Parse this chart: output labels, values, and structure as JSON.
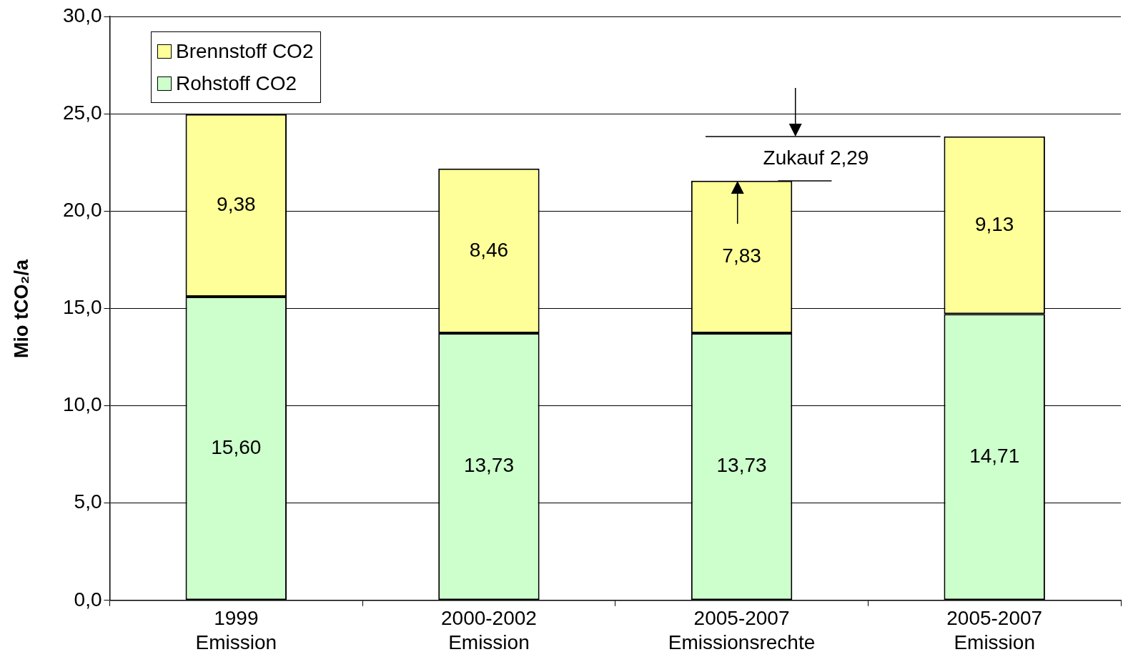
{
  "chart_data": {
    "type": "bar",
    "stacked": true,
    "ylabel": "Mio tCO₂/a",
    "categories": [
      "1999\nEmission",
      "2000-2002\nEmission",
      "2005-2007\nEmissionsrechte",
      "2005-2007\nEmission"
    ],
    "series": [
      {
        "name": "Rohstoff CO2",
        "color": "#ccffcc",
        "values": [
          15.6,
          13.73,
          13.73,
          14.71
        ],
        "value_labels": [
          "15,60",
          "13,73",
          "13,73",
          "14,71"
        ]
      },
      {
        "name": "Brennstoff CO2",
        "color": "#ffff99",
        "values": [
          9.38,
          8.46,
          7.83,
          9.13
        ],
        "value_labels": [
          "9,38",
          "8,46",
          "7,83",
          "9,13"
        ]
      }
    ],
    "ylim": [
      0,
      30
    ],
    "yticks": [
      {
        "value": 0,
        "label": "0,0"
      },
      {
        "value": 5,
        "label": "5,0"
      },
      {
        "value": 10,
        "label": "10,0"
      },
      {
        "value": 15,
        "label": "15,0"
      },
      {
        "value": 20,
        "label": "20,0"
      },
      {
        "value": 25,
        "label": "25,0"
      },
      {
        "value": 30,
        "label": "30,0"
      }
    ],
    "grid": "y",
    "legend": "top left",
    "annotations": [
      "Zukauf 2,29"
    ]
  }
}
